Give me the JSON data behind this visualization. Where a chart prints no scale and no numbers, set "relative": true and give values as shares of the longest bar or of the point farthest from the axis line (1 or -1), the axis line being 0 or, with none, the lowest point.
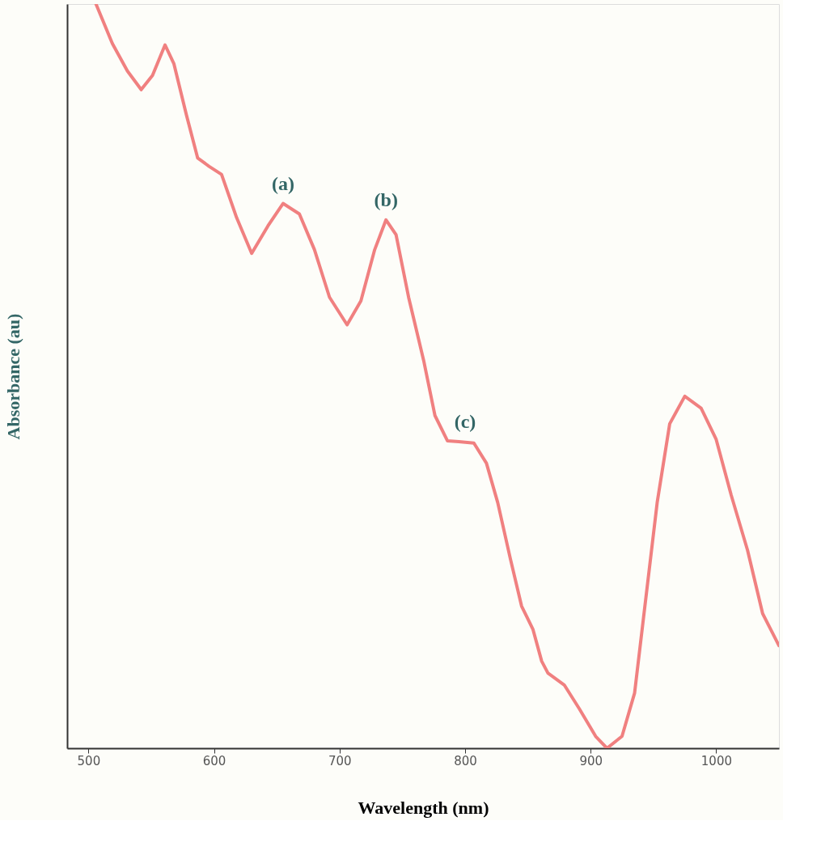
{
  "chart_data": {
    "type": "line",
    "relative": true,
    "xlabel": "Wavelength (nm)",
    "ylabel": "Absorbance (au)",
    "xlim": [
      483,
      1050
    ],
    "xticks": [
      500,
      600,
      700,
      800,
      900,
      1000
    ],
    "grid": false,
    "marker": "none",
    "line_style": "solid",
    "x": [
      506,
      519,
      531,
      542,
      551,
      561,
      568,
      578,
      587,
      596,
      606,
      618,
      630,
      643,
      655,
      668,
      680,
      692,
      706,
      717,
      728,
      737,
      745,
      755,
      767,
      776,
      786,
      795,
      807,
      817,
      826,
      836,
      845,
      854,
      861,
      866,
      879,
      891,
      904,
      913,
      925,
      935,
      944,
      953,
      963,
      975,
      988,
      1000,
      1012,
      1025,
      1037,
      1050
    ],
    "series": [
      {
        "color": "#f08080",
        "values": [
          1.0,
          0.947,
          0.91,
          0.885,
          0.904,
          0.945,
          0.92,
          0.851,
          0.793,
          0.782,
          0.771,
          0.713,
          0.665,
          0.702,
          0.732,
          0.718,
          0.67,
          0.606,
          0.569,
          0.601,
          0.67,
          0.71,
          0.69,
          0.606,
          0.521,
          0.447,
          0.413,
          0.412,
          0.41,
          0.383,
          0.33,
          0.255,
          0.191,
          0.16,
          0.117,
          0.101,
          0.085,
          0.053,
          0.016,
          0.0,
          0.016,
          0.074,
          0.202,
          0.33,
          0.436,
          0.473,
          0.457,
          0.415,
          0.34,
          0.266,
          0.181,
          0.138
        ]
      }
    ],
    "annotations": [
      {
        "text": "(a)",
        "x": 655,
        "y": 0.732
      },
      {
        "text": "(b)",
        "x": 737,
        "y": 0.71
      },
      {
        "text": "(c)",
        "x": 800,
        "y": 0.412
      }
    ]
  }
}
